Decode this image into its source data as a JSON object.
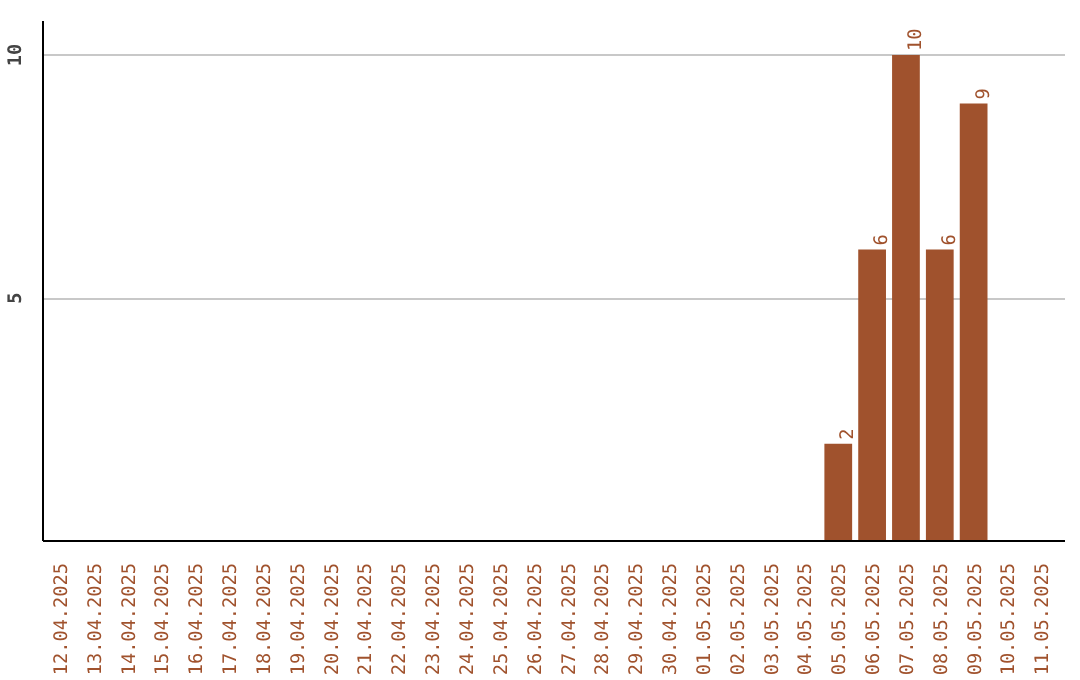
{
  "chart_data": {
    "type": "bar",
    "categories": [
      "12.04.2025",
      "13.04.2025",
      "14.04.2025",
      "15.04.2025",
      "16.04.2025",
      "17.04.2025",
      "18.04.2025",
      "19.04.2025",
      "20.04.2025",
      "21.04.2025",
      "22.04.2025",
      "23.04.2025",
      "24.04.2025",
      "25.04.2025",
      "26.04.2025",
      "27.04.2025",
      "28.04.2025",
      "29.04.2025",
      "30.04.2025",
      "01.05.2025",
      "02.05.2025",
      "03.05.2025",
      "04.05.2025",
      "05.05.2025",
      "06.05.2025",
      "07.05.2025",
      "08.05.2025",
      "09.05.2025",
      "10.05.2025",
      "11.05.2025"
    ],
    "values": [
      0,
      0,
      0,
      0,
      0,
      0,
      0,
      0,
      0,
      0,
      0,
      0,
      0,
      0,
      0,
      0,
      0,
      0,
      0,
      0,
      0,
      0,
      0,
      2,
      6,
      10,
      6,
      9,
      0,
      0
    ],
    "value_labels": [
      null,
      null,
      null,
      null,
      null,
      null,
      null,
      null,
      null,
      null,
      null,
      null,
      null,
      null,
      null,
      null,
      null,
      null,
      null,
      null,
      null,
      null,
      null,
      "2",
      "6",
      "10",
      "6",
      "9",
      null,
      null
    ],
    "color": "#a0522d",
    "ylim": [
      0,
      10.7
    ],
    "yticks": [
      5,
      10
    ],
    "grid": "y"
  }
}
